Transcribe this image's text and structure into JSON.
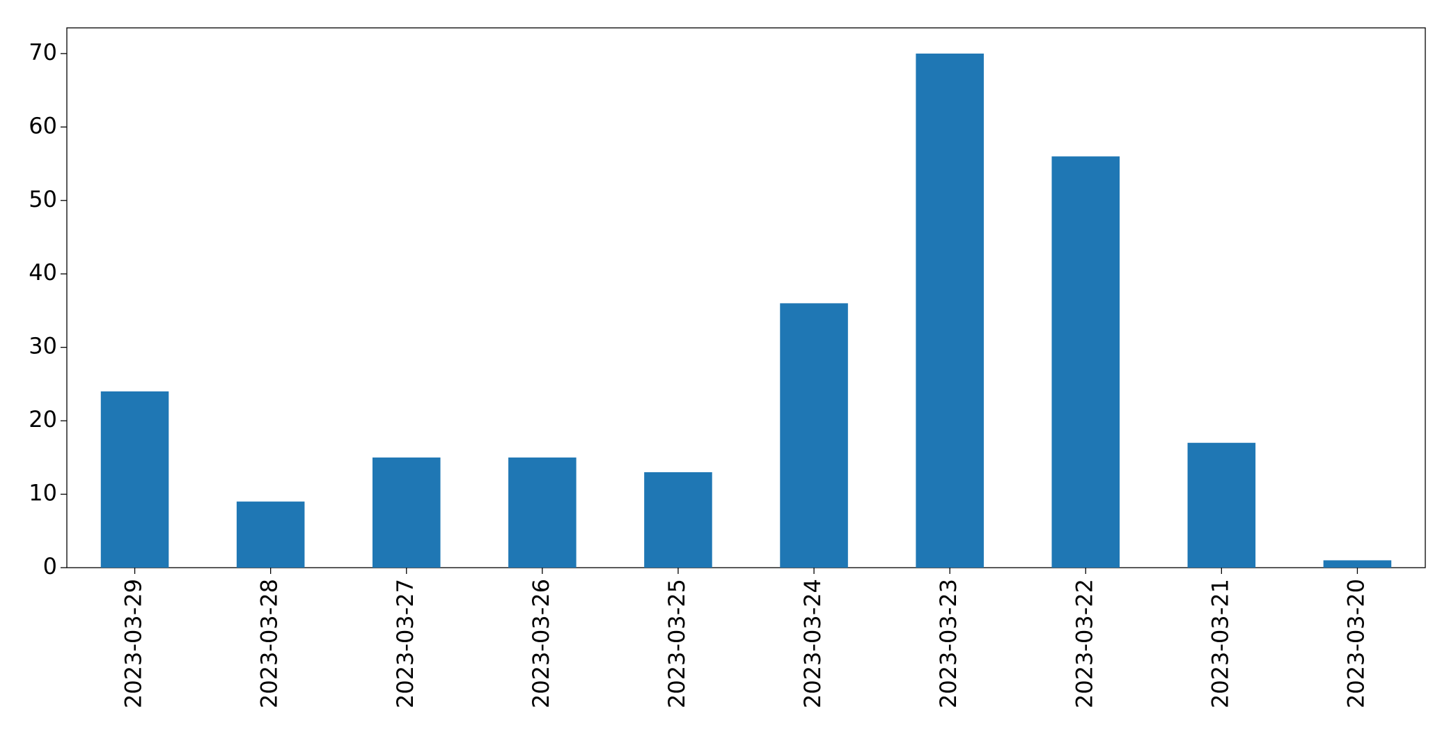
{
  "chart_data": {
    "type": "bar",
    "categories": [
      "2023-03-29",
      "2023-03-28",
      "2023-03-27",
      "2023-03-26",
      "2023-03-25",
      "2023-03-24",
      "2023-03-23",
      "2023-03-22",
      "2023-03-21",
      "2023-03-20"
    ],
    "values": [
      24,
      9,
      15,
      15,
      13,
      36,
      70,
      56,
      17,
      1
    ],
    "color": "#1f77b4",
    "ylim": [
      0,
      73.5
    ],
    "yticks": [
      0,
      10,
      20,
      30,
      40,
      50,
      60,
      70
    ],
    "grid": false
  }
}
